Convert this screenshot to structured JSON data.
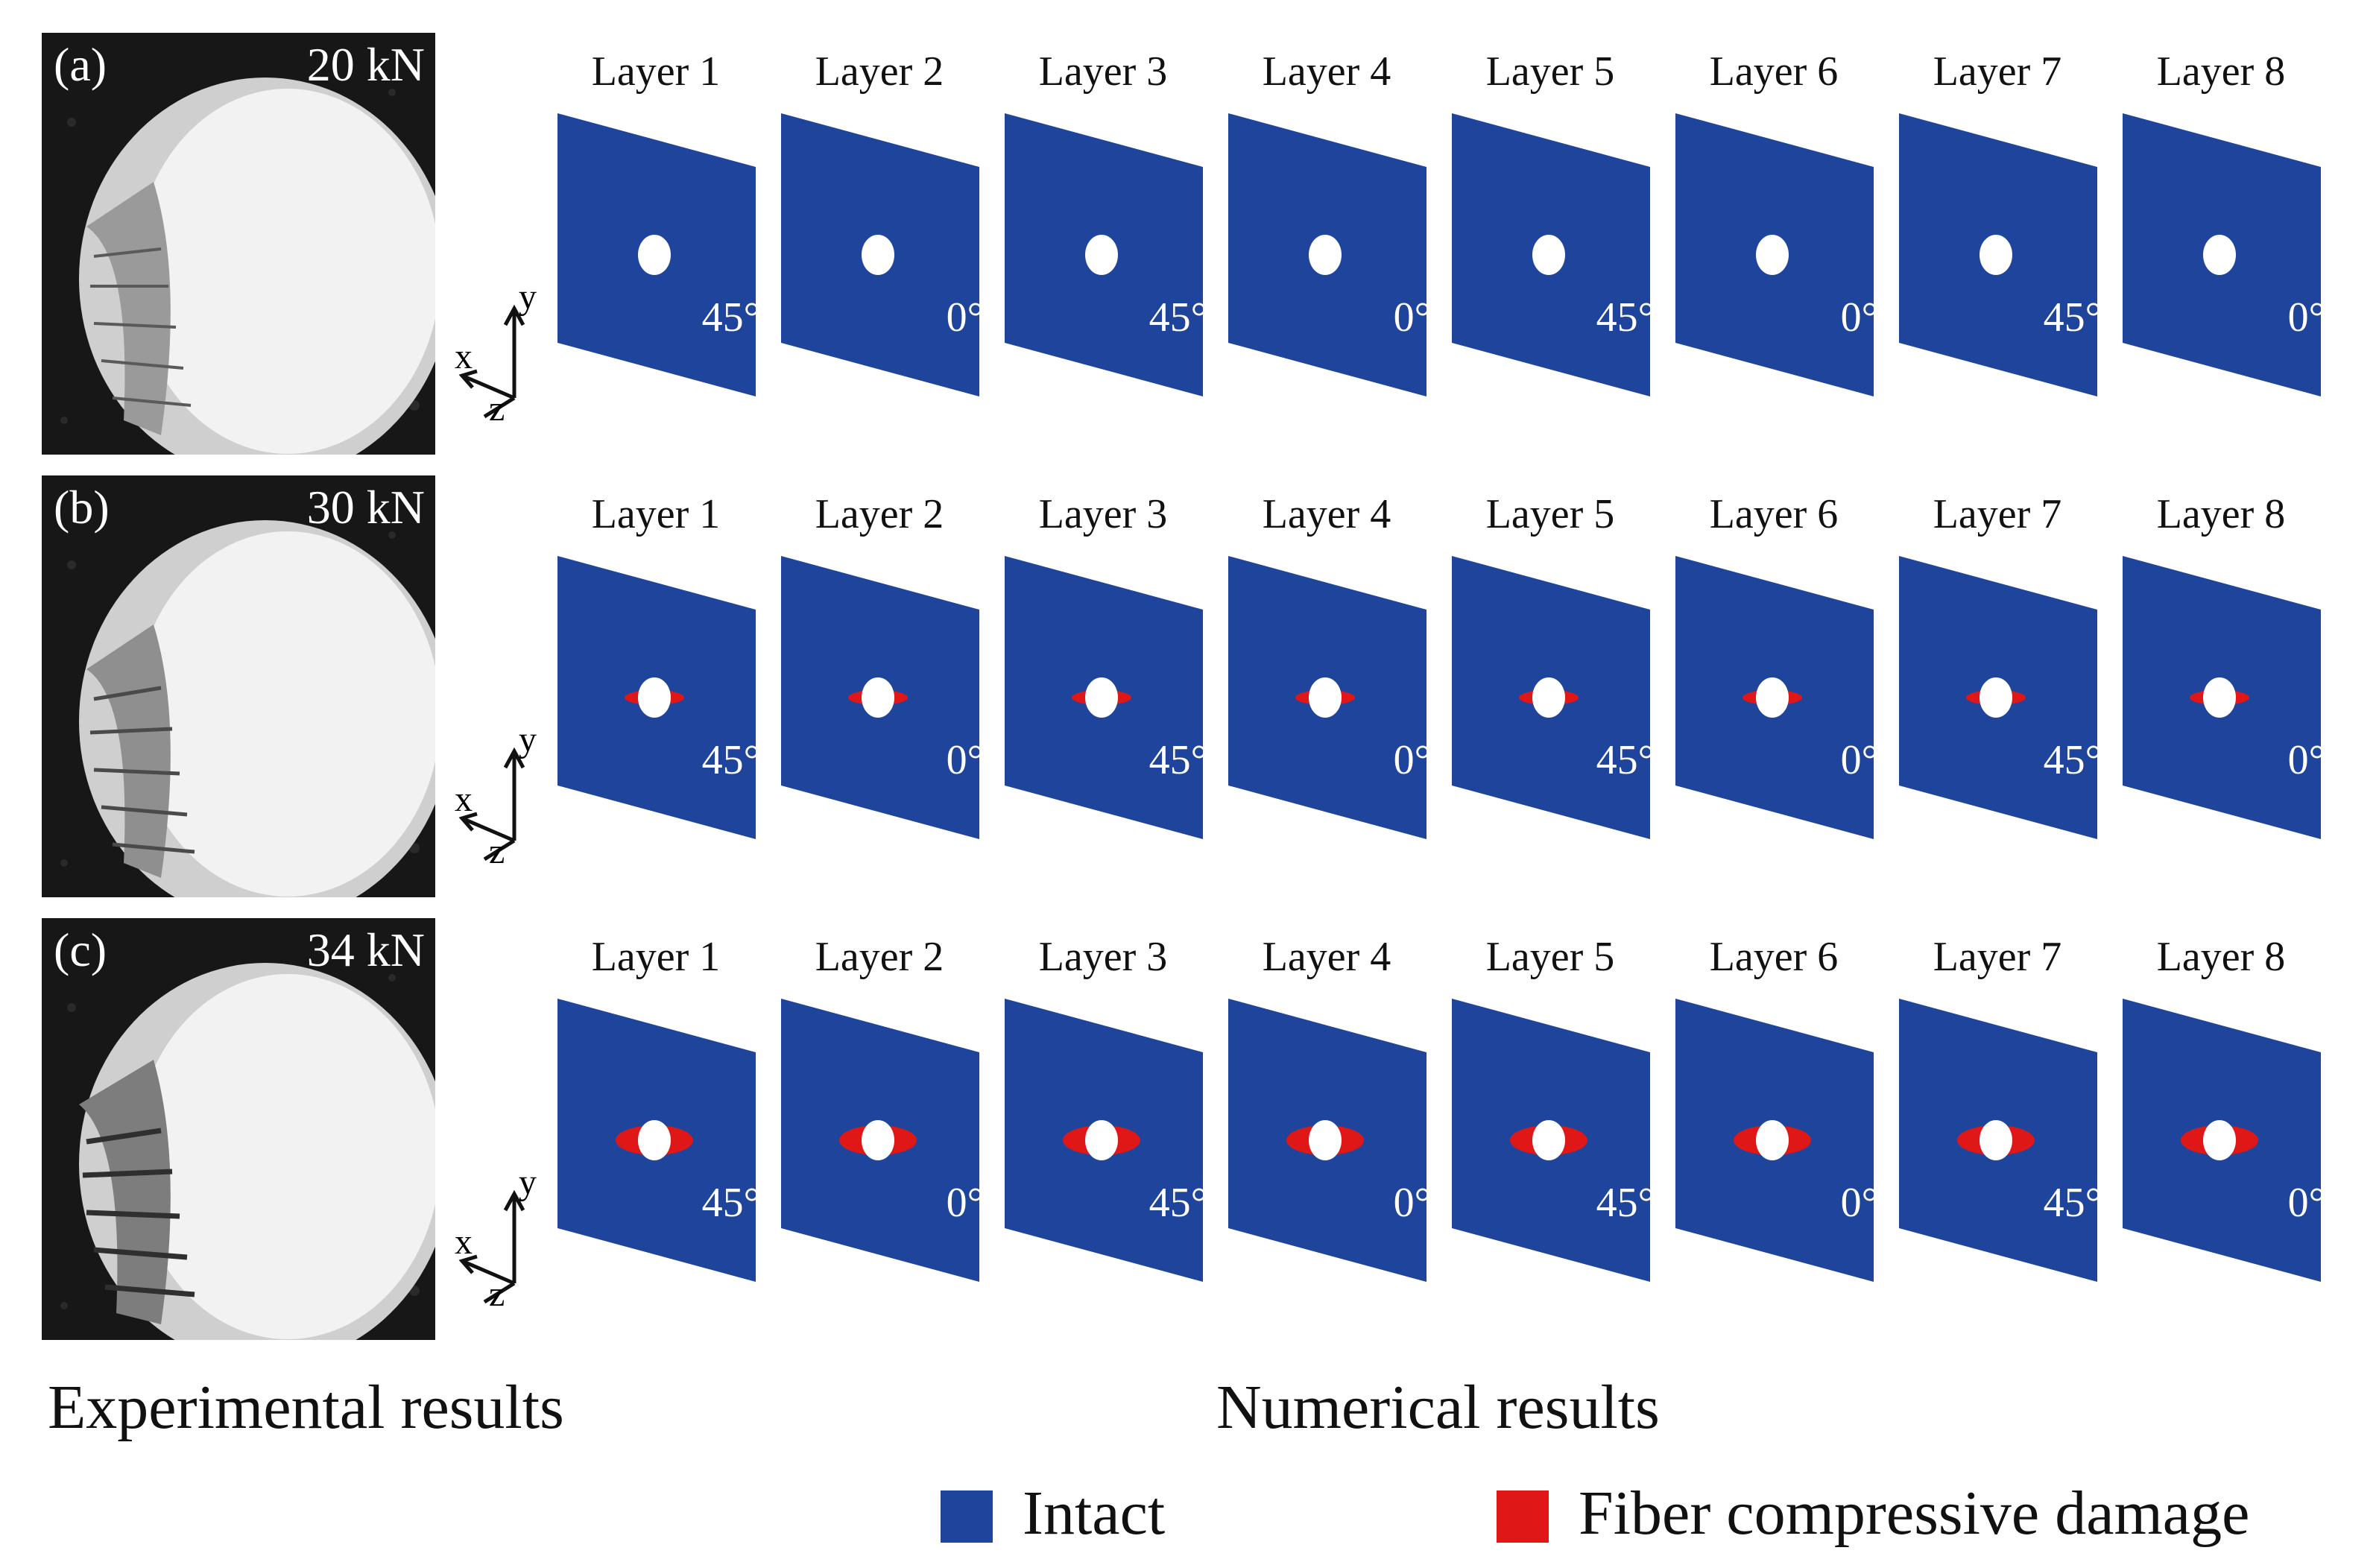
{
  "rows": [
    {
      "tag": "(a)",
      "load": "20 kN",
      "damage_level": 0
    },
    {
      "tag": "(b)",
      "load": "30 kN",
      "damage_level": 1
    },
    {
      "tag": "(c)",
      "load": "34 kN",
      "damage_level": 2
    }
  ],
  "layers": [
    {
      "label": "Layer 1",
      "angle": "45°"
    },
    {
      "label": "Layer 2",
      "angle": "0°"
    },
    {
      "label": "Layer 3",
      "angle": "45°"
    },
    {
      "label": "Layer 4",
      "angle": "0°"
    },
    {
      "label": "Layer 5",
      "angle": "45°"
    },
    {
      "label": "Layer 6",
      "angle": "0°"
    },
    {
      "label": "Layer 7",
      "angle": "45°"
    },
    {
      "label": "Layer 8",
      "angle": "0°"
    }
  ],
  "axes": {
    "x": "x",
    "y": "y",
    "z": "z"
  },
  "captions": {
    "experimental": "Experimental results",
    "numerical": "Numerical results"
  },
  "legend": [
    {
      "label": "Intact",
      "color": "#1f449c"
    },
    {
      "label": "Fiber compressive damage",
      "color": "#e01717"
    }
  ],
  "colors": {
    "plate": "#1f449c",
    "damage": "#e01717",
    "hole": "#ffffff"
  }
}
